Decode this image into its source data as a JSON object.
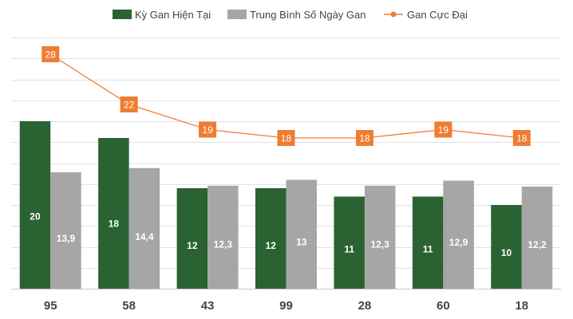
{
  "chart_data": {
    "type": "bar",
    "categories": [
      "95",
      "58",
      "43",
      "99",
      "28",
      "60",
      "18"
    ],
    "series": [
      {
        "name": "Kỳ Gan Hiện Tại",
        "kind": "bar",
        "color": "#2a6232",
        "values": [
          20,
          18,
          12,
          12,
          11,
          11,
          10
        ],
        "labels": [
          "20",
          "18",
          "12",
          "12",
          "11",
          "11",
          "10"
        ]
      },
      {
        "name": "Trung Bình Số Ngày Gan",
        "kind": "bar",
        "color": "#a6a6a6",
        "values": [
          13.9,
          14.4,
          12.3,
          13,
          12.3,
          12.9,
          12.2
        ],
        "labels": [
          "13,9",
          "14,4",
          "12,3",
          "13",
          "12,3",
          "12,9",
          "12,2"
        ]
      },
      {
        "name": "Gan Cực Đại",
        "kind": "line",
        "color": "#ef7d31",
        "values": [
          28,
          22,
          19,
          18,
          18,
          19,
          18
        ],
        "labels": [
          "28",
          "22",
          "19",
          "18",
          "18",
          "19",
          "18"
        ]
      }
    ],
    "title": "",
    "xlabel": "",
    "ylabel": "",
    "ylim": [
      0,
      30
    ],
    "grid": true,
    "legend_position": "top-center"
  }
}
